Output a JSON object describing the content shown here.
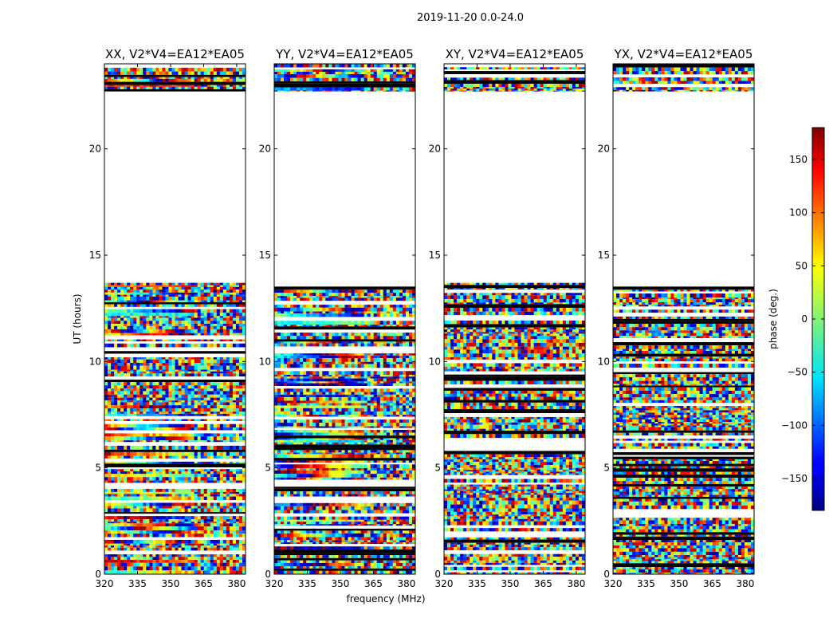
{
  "chart_data": {
    "type": "heatmap",
    "suptitle": "2019-11-20 0.0-24.0",
    "xlabel": "frequency (MHz)",
    "ylabel": "UT (hours)",
    "xlim": [
      320,
      384
    ],
    "ylim": [
      0,
      24
    ],
    "xticks": [
      320,
      335,
      350,
      365,
      380
    ],
    "yticks": [
      0,
      5,
      10,
      15,
      20
    ],
    "panels": [
      {
        "title": "XX, V2*V4=EA12*EA05",
        "product": "XX"
      },
      {
        "title": "YY, V2*V4=EA12*EA05",
        "product": "YY"
      },
      {
        "title": "XY, V2*V4=EA12*EA05",
        "product": "XY"
      },
      {
        "title": "YX, V2*V4=EA12*EA05",
        "product": "YX"
      }
    ],
    "data_coverage_hours": [
      [
        0.0,
        13.7
      ],
      [
        22.7,
        24.0
      ]
    ],
    "blank_gap_hours": [
      13.7,
      22.7
    ],
    "colorbar": {
      "label": "phase (deg.)",
      "cmap": "jet",
      "range": [
        -180,
        180
      ],
      "ticks": [
        150,
        100,
        50,
        0,
        -50,
        -100,
        -150
      ],
      "tick_labels": [
        "150",
        "100",
        "50",
        "0",
        "−50",
        "−100",
        "−150"
      ]
    }
  }
}
